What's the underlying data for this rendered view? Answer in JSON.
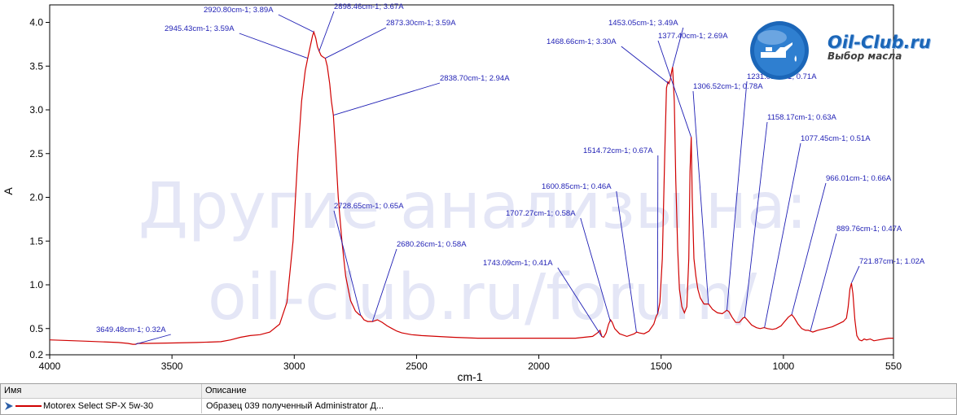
{
  "chart_data": {
    "type": "line",
    "title": "",
    "xlabel": "cm-1",
    "ylabel": "A",
    "xlim": [
      4000,
      550
    ],
    "ylim": [
      0.2,
      4.2
    ],
    "x_ticks": [
      "4000",
      "3500",
      "3000",
      "2500",
      "2000",
      "1500",
      "1000",
      "550"
    ],
    "y_ticks": [
      "0.2",
      "0.5",
      "1.0",
      "1.5",
      "2.0",
      "2.5",
      "3.0",
      "3.5",
      "4.0"
    ],
    "series": [
      {
        "name": "Motorex Select SP-X 5w-30",
        "color": "#d00000",
        "points": [
          [
            4000,
            0.37
          ],
          [
            3850,
            0.355
          ],
          [
            3720,
            0.34
          ],
          [
            3680,
            0.33
          ],
          [
            3660,
            0.32
          ],
          [
            3649,
            0.32
          ],
          [
            3640,
            0.33
          ],
          [
            3600,
            0.33
          ],
          [
            3500,
            0.335
          ],
          [
            3400,
            0.34
          ],
          [
            3300,
            0.35
          ],
          [
            3260,
            0.37
          ],
          [
            3220,
            0.4
          ],
          [
            3180,
            0.42
          ],
          [
            3140,
            0.43
          ],
          [
            3100,
            0.46
          ],
          [
            3060,
            0.55
          ],
          [
            3030,
            0.8
          ],
          [
            3005,
            1.5
          ],
          [
            2985,
            2.5
          ],
          [
            2970,
            3.1
          ],
          [
            2955,
            3.45
          ],
          [
            2945,
            3.59
          ],
          [
            2935,
            3.72
          ],
          [
            2925,
            3.85
          ],
          [
            2920,
            3.89
          ],
          [
            2912,
            3.82
          ],
          [
            2905,
            3.72
          ],
          [
            2898,
            3.67
          ],
          [
            2890,
            3.62
          ],
          [
            2880,
            3.6
          ],
          [
            2873,
            3.59
          ],
          [
            2865,
            3.5
          ],
          [
            2855,
            3.3
          ],
          [
            2848,
            3.1
          ],
          [
            2840,
            2.94
          ],
          [
            2838,
            2.85
          ],
          [
            2830,
            2.5
          ],
          [
            2820,
            2.0
          ],
          [
            2805,
            1.5
          ],
          [
            2790,
            1.1
          ],
          [
            2770,
            0.82
          ],
          [
            2750,
            0.7
          ],
          [
            2735,
            0.66
          ],
          [
            2728,
            0.65
          ],
          [
            2715,
            0.6
          ],
          [
            2700,
            0.58
          ],
          [
            2680,
            0.58
          ],
          [
            2660,
            0.6
          ],
          [
            2640,
            0.57
          ],
          [
            2620,
            0.53
          ],
          [
            2600,
            0.5
          ],
          [
            2580,
            0.47
          ],
          [
            2560,
            0.45
          ],
          [
            2520,
            0.43
          ],
          [
            2480,
            0.42
          ],
          [
            2420,
            0.41
          ],
          [
            2350,
            0.4
          ],
          [
            2250,
            0.39
          ],
          [
            2150,
            0.39
          ],
          [
            2050,
            0.39
          ],
          [
            1950,
            0.39
          ],
          [
            1850,
            0.39
          ],
          [
            1780,
            0.41
          ],
          [
            1760,
            0.45
          ],
          [
            1750,
            0.48
          ],
          [
            1743,
            0.41
          ],
          [
            1735,
            0.4
          ],
          [
            1725,
            0.45
          ],
          [
            1715,
            0.55
          ],
          [
            1707,
            0.6
          ],
          [
            1700,
            0.57
          ],
          [
            1690,
            0.5
          ],
          [
            1670,
            0.44
          ],
          [
            1640,
            0.41
          ],
          [
            1620,
            0.43
          ],
          [
            1610,
            0.44
          ],
          [
            1600,
            0.46
          ],
          [
            1590,
            0.45
          ],
          [
            1570,
            0.44
          ],
          [
            1550,
            0.47
          ],
          [
            1530,
            0.55
          ],
          [
            1520,
            0.64
          ],
          [
            1514,
            0.67
          ],
          [
            1505,
            0.8
          ],
          [
            1495,
            1.3
          ],
          [
            1485,
            2.5
          ],
          [
            1478,
            3.25
          ],
          [
            1472,
            3.32
          ],
          [
            1468,
            3.3
          ],
          [
            1462,
            3.35
          ],
          [
            1458,
            3.42
          ],
          [
            1453,
            3.49
          ],
          [
            1446,
            3.1
          ],
          [
            1440,
            2.2
          ],
          [
            1432,
            1.4
          ],
          [
            1425,
            0.95
          ],
          [
            1415,
            0.75
          ],
          [
            1405,
            0.68
          ],
          [
            1395,
            0.75
          ],
          [
            1387,
            1.3
          ],
          [
            1382,
            2.3
          ],
          [
            1377,
            2.69
          ],
          [
            1373,
            2.0
          ],
          [
            1366,
            1.3
          ],
          [
            1358,
            1.1
          ],
          [
            1350,
            0.95
          ],
          [
            1340,
            0.85
          ],
          [
            1325,
            0.78
          ],
          [
            1306,
            0.78
          ],
          [
            1290,
            0.72
          ],
          [
            1270,
            0.68
          ],
          [
            1250,
            0.67
          ],
          [
            1240,
            0.69
          ],
          [
            1231,
            0.71
          ],
          [
            1222,
            0.69
          ],
          [
            1210,
            0.63
          ],
          [
            1195,
            0.57
          ],
          [
            1180,
            0.57
          ],
          [
            1165,
            0.62
          ],
          [
            1158,
            0.63
          ],
          [
            1148,
            0.6
          ],
          [
            1130,
            0.54
          ],
          [
            1110,
            0.51
          ],
          [
            1095,
            0.5
          ],
          [
            1080,
            0.51
          ],
          [
            1077,
            0.51
          ],
          [
            1065,
            0.5
          ],
          [
            1045,
            0.49
          ],
          [
            1030,
            0.5
          ],
          [
            1010,
            0.53
          ],
          [
            995,
            0.58
          ],
          [
            980,
            0.63
          ],
          [
            966,
            0.66
          ],
          [
            955,
            0.62
          ],
          [
            940,
            0.55
          ],
          [
            925,
            0.5
          ],
          [
            910,
            0.48
          ],
          [
            898,
            0.48
          ],
          [
            889,
            0.47
          ],
          [
            880,
            0.46
          ],
          [
            870,
            0.47
          ],
          [
            860,
            0.48
          ],
          [
            845,
            0.49
          ],
          [
            830,
            0.5
          ],
          [
            815,
            0.51
          ],
          [
            800,
            0.52
          ],
          [
            785,
            0.54
          ],
          [
            770,
            0.56
          ],
          [
            755,
            0.58
          ],
          [
            742,
            0.62
          ],
          [
            735,
            0.75
          ],
          [
            728,
            0.95
          ],
          [
            722,
            1.02
          ],
          [
            716,
            0.9
          ],
          [
            708,
            0.6
          ],
          [
            700,
            0.42
          ],
          [
            690,
            0.37
          ],
          [
            680,
            0.36
          ],
          [
            670,
            0.38
          ],
          [
            660,
            0.37
          ],
          [
            645,
            0.38
          ],
          [
            630,
            0.36
          ],
          [
            610,
            0.37
          ],
          [
            590,
            0.38
          ],
          [
            570,
            0.39
          ],
          [
            550,
            0.39
          ]
        ]
      }
    ],
    "annotations": [
      {
        "label": "3649.48cm-1; 0.32A",
        "x": 3649.48,
        "y": 0.32
      },
      {
        "label": "2945.43cm-1; 3.59A",
        "x": 2945.43,
        "y": 3.59
      },
      {
        "label": "2920.80cm-1; 3.89A",
        "x": 2920.8,
        "y": 3.89
      },
      {
        "label": "2898.46cm-1; 3.67A",
        "x": 2898.46,
        "y": 3.67
      },
      {
        "label": "2873.30cm-1; 3.59A",
        "x": 2873.3,
        "y": 3.59
      },
      {
        "label": "2838.70cm-1; 2.94A",
        "x": 2838.7,
        "y": 2.94
      },
      {
        "label": "2728.65cm-1; 0.65A",
        "x": 2728.65,
        "y": 0.65
      },
      {
        "label": "2680.26cm-1; 0.58A",
        "x": 2680.26,
        "y": 0.58
      },
      {
        "label": "1743.09cm-1; 0.41A",
        "x": 1743.09,
        "y": 0.41
      },
      {
        "label": "1707.27cm-1; 0.58A",
        "x": 1707.27,
        "y": 0.58
      },
      {
        "label": "1600.85cm-1; 0.46A",
        "x": 1600.85,
        "y": 0.46
      },
      {
        "label": "1514.72cm-1; 0.67A",
        "x": 1514.72,
        "y": 0.67
      },
      {
        "label": "1468.66cm-1; 3.30A",
        "x": 1468.66,
        "y": 3.3
      },
      {
        "label": "1453.05cm-1; 3.49A",
        "x": 1453.05,
        "y": 3.49
      },
      {
        "label": "1377.40cm-1; 2.69A",
        "x": 1377.4,
        "y": 2.69
      },
      {
        "label": "1306.52cm-1; 0.78A",
        "x": 1306.52,
        "y": 0.78
      },
      {
        "label": "1231.03cm-1; 0.71A",
        "x": 1231.03,
        "y": 0.71
      },
      {
        "label": "1158.17cm-1; 0.63A",
        "x": 1158.17,
        "y": 0.63
      },
      {
        "label": "1077.45cm-1; 0.51A",
        "x": 1077.45,
        "y": 0.51
      },
      {
        "label": "966.01cm-1; 0.66A",
        "x": 966.01,
        "y": 0.66
      },
      {
        "label": "889.76cm-1; 0.47A",
        "x": 889.76,
        "y": 0.47
      },
      {
        "label": "721.87cm-1; 1.02A",
        "x": 721.87,
        "y": 1.02
      }
    ]
  },
  "watermark": {
    "line1": "Другие анализы на:",
    "line2": "oil-club.ru/forum/"
  },
  "logo": {
    "title": "Oil-Club.ru",
    "subtitle": "Выбор масла",
    "icon": "oil-can-icon"
  },
  "legend": {
    "col_name": "Имя",
    "col_desc": "Описание",
    "rows": [
      {
        "name": "Motorex Select SP-X 5w-30",
        "desc": "Образец 039 полученный Administrator Д...",
        "icon": "play-arrow-icon",
        "color": "#d00000"
      }
    ]
  }
}
